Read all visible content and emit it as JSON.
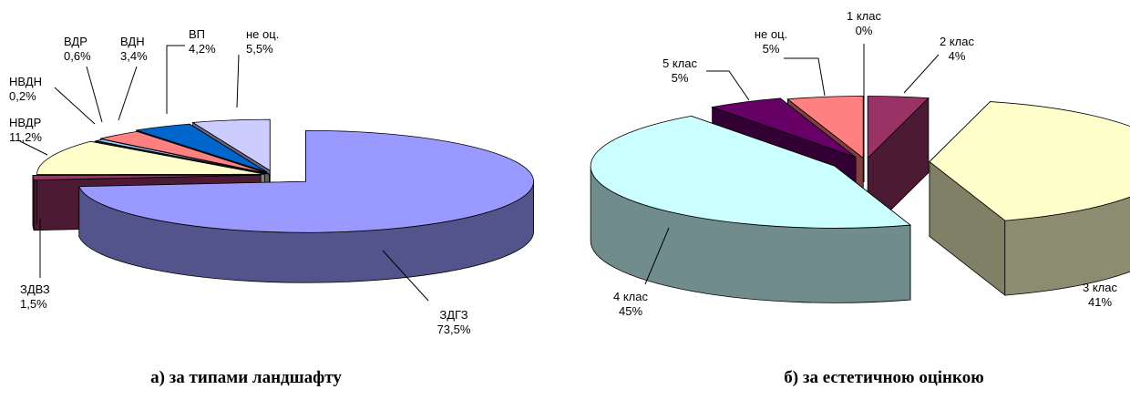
{
  "chart_data": [
    {
      "type": "pie",
      "title": "а) за типами ландшафту",
      "slices": [
        {
          "label": "ЗДГЗ",
          "value_text": "73,5%",
          "value": 73.5,
          "color": "#9999ff"
        },
        {
          "label": "ЗДВЗ",
          "value_text": "1,5%",
          "value": 1.5,
          "color": "#993366"
        },
        {
          "label": "НВДР",
          "value_text": "11,2%",
          "value": 11.2,
          "color": "#ffffcc"
        },
        {
          "label": "НВДН",
          "value_text": "0,2%",
          "value": 0.2,
          "color": "#c0c0c0"
        },
        {
          "label": "ВДР",
          "value_text": "0,6%",
          "value": 0.6,
          "color": "#99ccff"
        },
        {
          "label": "ВДН",
          "value_text": "3,4%",
          "value": 3.4,
          "color": "#ff8080"
        },
        {
          "label": "ВП",
          "value_text": "4,2%",
          "value": 4.2,
          "color": "#0066cc"
        },
        {
          "label": "не оц.",
          "value_text": "5,5%",
          "value": 5.5,
          "color": "#ccccff"
        }
      ]
    },
    {
      "type": "pie",
      "title": "б) за естетичною оцінкою",
      "slices": [
        {
          "label": "1 клас",
          "value_text": "0%",
          "value": 0,
          "color": "#ffffff"
        },
        {
          "label": "2 клас",
          "value_text": "4%",
          "value": 4,
          "color": "#993366"
        },
        {
          "label": "3 клас",
          "value_text": "41%",
          "value": 41,
          "color": "#ffffcc"
        },
        {
          "label": "4 клас",
          "value_text": "45%",
          "value": 45,
          "color": "#ccffff"
        },
        {
          "label": "5 клас",
          "value_text": "5%",
          "value": 5,
          "color": "#660066"
        },
        {
          "label": "не оц.",
          "value_text": "5%",
          "value": 5,
          "color": "#ff8080"
        }
      ]
    }
  ]
}
